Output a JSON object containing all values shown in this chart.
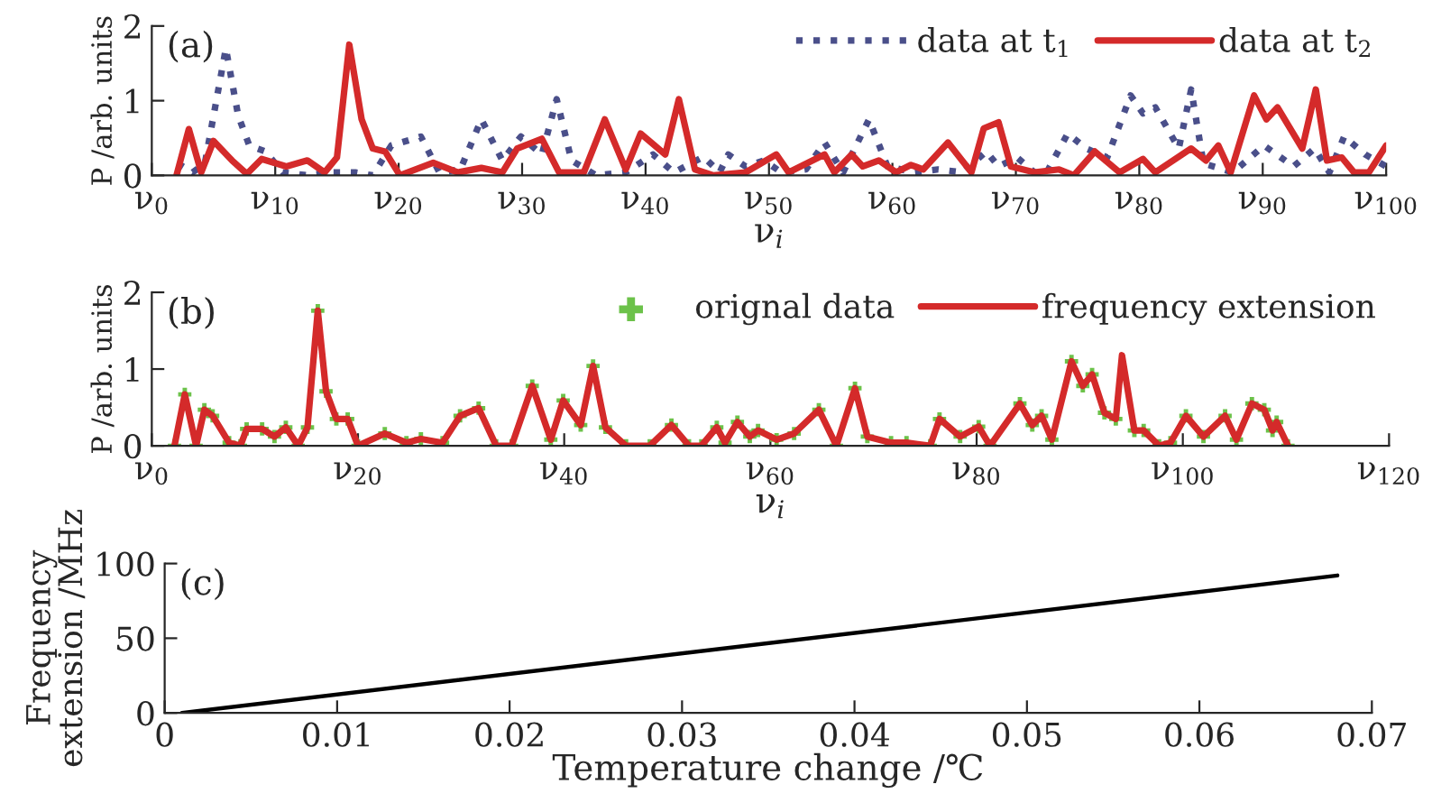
{
  "chart_data": [
    {
      "type": "line",
      "ylabel": "P /arb. units",
      "xlabel": "ν$_{i}$",
      "annotations": [
        "(a)"
      ],
      "legend": "top right",
      "grid": false,
      "xlim": [
        0,
        100
      ],
      "xticks": [
        {
          "value": 0,
          "label": "ν$_{0}$"
        },
        {
          "value": 10,
          "label": "ν$_{10}$"
        },
        {
          "value": 20,
          "label": "ν$_{20}$"
        },
        {
          "value": 30,
          "label": "ν$_{30}$"
        },
        {
          "value": 40,
          "label": "ν$_{40}$"
        },
        {
          "value": 50,
          "label": "ν$_{50}$"
        },
        {
          "value": 60,
          "label": "ν$_{60}$"
        },
        {
          "value": 70,
          "label": "ν$_{70}$"
        },
        {
          "value": 80,
          "label": "ν$_{80}$"
        },
        {
          "value": 90,
          "label": "ν$_{90}$"
        },
        {
          "value": 100,
          "label": "ν$_{100}$"
        }
      ],
      "ylim": [
        0,
        2
      ],
      "yticks": [
        0,
        1,
        2
      ],
      "series": [
        {
          "name": "data at t$_{1}$",
          "color": "#4a4f8a",
          "line_style": "dotted",
          "x": [
            2.1,
            3.3,
            4.3,
            6,
            7,
            7.9,
            9.2,
            10.6,
            12.6,
            14.5,
            16.5,
            17.9,
            19.4,
            21.8,
            23.3,
            25,
            26.7,
            28.4,
            29.9,
            31.6,
            32.8,
            34,
            36,
            38.4,
            40.6,
            42.3,
            44.7,
            46,
            46.7,
            48.1,
            49.6,
            51,
            53,
            54.5,
            56,
            58.1,
            59.6,
            61.8,
            63.7,
            65.7,
            67.6,
            68.6,
            70.1,
            71.5,
            72.5,
            74.2,
            75.7,
            77.4,
            79.3,
            80.3,
            81.3,
            83.2,
            84.2,
            85.2,
            87.6,
            90.1,
            92.5,
            94.2,
            95.4,
            96.6,
            98.3,
            100
          ],
          "values": [
            0.16,
            0.04,
            0.16,
            1.7,
            0.8,
            0.4,
            0.32,
            0.04,
            0,
            0.04,
            0.04,
            0,
            0.4,
            0.52,
            0.04,
            0.08,
            0.75,
            0.2,
            0.52,
            0.28,
            1.02,
            0.2,
            0,
            0.04,
            0.28,
            0.04,
            0.25,
            0.04,
            0.28,
            0.12,
            0.2,
            0.04,
            0.08,
            0.44,
            0.04,
            0.75,
            0.12,
            0.04,
            0.08,
            0.04,
            0.32,
            0.12,
            0.24,
            0.04,
            0.04,
            0.56,
            0.36,
            0.24,
            1.07,
            0.83,
            0.91,
            0.36,
            1.15,
            0.16,
            0.04,
            0.4,
            0.12,
            0.36,
            0.04,
            0.52,
            0.28,
            0.12
          ]
        },
        {
          "name": "data at t$_{2}$",
          "color": "#d42a2a",
          "line_style": "solid",
          "x": [
            2,
            3,
            4,
            5,
            6.5,
            7.7,
            8.9,
            10.9,
            12.6,
            14,
            15,
            16,
            17,
            17.9,
            18.9,
            20.1,
            22.8,
            24.8,
            26.7,
            28.4,
            29.6,
            31.6,
            33,
            35,
            36.7,
            38.4,
            39.6,
            41.6,
            42.7,
            44,
            45.5,
            48.1,
            50.6,
            51.6,
            54.5,
            55.3,
            56.7,
            57.6,
            58.9,
            60.3,
            61.5,
            62.5,
            64.5,
            66.4,
            67.4,
            68.6,
            69.6,
            71.5,
            73.5,
            74.7,
            76.4,
            78.4,
            80.3,
            81.3,
            84.2,
            85.4,
            86.4,
            87.4,
            89.3,
            90.3,
            91.2,
            93.2,
            94.3,
            95.2,
            96.4,
            97.4,
            98.6,
            100
          ],
          "values": [
            0,
            0.62,
            0.04,
            0.46,
            0.2,
            0.02,
            0.22,
            0.12,
            0.2,
            0.04,
            0.24,
            1.75,
            0.75,
            0.36,
            0.32,
            0,
            0.17,
            0.04,
            0.1,
            0.04,
            0.36,
            0.49,
            0.04,
            0.04,
            0.75,
            0.08,
            0.56,
            0.28,
            1.02,
            0.08,
            0,
            0.04,
            0.28,
            0.04,
            0.28,
            0.04,
            0.28,
            0.12,
            0.2,
            0.04,
            0.14,
            0.08,
            0.44,
            0.04,
            0.63,
            0.71,
            0.12,
            0.04,
            0.08,
            0,
            0.32,
            0.04,
            0.22,
            0.04,
            0.36,
            0.2,
            0.4,
            0.04,
            1.07,
            0.75,
            0.91,
            0.36,
            1.15,
            0.2,
            0.24,
            0.04,
            0.04,
            0.4
          ]
        }
      ]
    },
    {
      "type": "line",
      "ylabel": "P /arb. units",
      "xlabel": "ν$_{i}$",
      "annotations": [
        "(b)"
      ],
      "legend": "top right",
      "grid": false,
      "xlim": [
        0,
        120
      ],
      "xticks": [
        {
          "value": 0,
          "label": "ν$_{0}$"
        },
        {
          "value": 20,
          "label": "ν$_{20}$"
        },
        {
          "value": 40,
          "label": "ν$_{40}$"
        },
        {
          "value": 60,
          "label": "ν$_{60}$"
        },
        {
          "value": 80,
          "label": "ν$_{80}$"
        },
        {
          "value": 100,
          "label": "ν$_{100}$"
        },
        {
          "value": 120,
          "label": "ν$_{120}$"
        }
      ],
      "ylim": [
        0,
        2
      ],
      "yticks": [
        0,
        1,
        2
      ],
      "series": [
        {
          "name": "orignal data",
          "type": "scatter",
          "marker": "cross",
          "color": "#6cc24a",
          "x": [
            2.2,
            3.2,
            4.3,
            5.1,
            5.9,
            7.5,
            8.6,
            9.2,
            10.7,
            11.9,
            13,
            14.2,
            15.1,
            16.1,
            16.9,
            17.9,
            19,
            20,
            22.6,
            24.7,
            26.1,
            28.2,
            29.9,
            31.7,
            33.4,
            34.9,
            36.9,
            38.7,
            39.9,
            41.6,
            42.8,
            44,
            46,
            48.3,
            50.4,
            52.1,
            53.3,
            54.8,
            55.6,
            56.8,
            58,
            58.8,
            60.6,
            62.3,
            64.7,
            66.4,
            68.2,
            69.4,
            71.7,
            73.2,
            75.5,
            76.4,
            78.4,
            80.2,
            81.3,
            84.2,
            85.4,
            86.3,
            87.3,
            89.2,
            90.3,
            91.2,
            92.4,
            93.5,
            95.3,
            96.2,
            97.7,
            98.8,
            100.3,
            102,
            104.1,
            105.2,
            106.7,
            107.9,
            108.7,
            109.1,
            110.2
          ],
          "values": [
            0,
            0.67,
            0,
            0.47,
            0.39,
            0.04,
            0,
            0.22,
            0.22,
            0.12,
            0.24,
            0,
            0.24,
            1.76,
            0.71,
            0.35,
            0.35,
            0,
            0.16,
            0.04,
            0.09,
            0.04,
            0.39,
            0.49,
            0,
            0,
            0.78,
            0.08,
            0.59,
            0.27,
            1.04,
            0.24,
            0,
            0,
            0.27,
            0,
            0,
            0.24,
            0.04,
            0.31,
            0.12,
            0.2,
            0.08,
            0.16,
            0.47,
            0,
            0.75,
            0.12,
            0.04,
            0.04,
            0,
            0.35,
            0.12,
            0.25,
            0,
            0.55,
            0.27,
            0.39,
            0.08,
            1.1,
            0.78,
            0.93,
            0.43,
            0.35,
            0.2,
            0.2,
            0,
            0.04,
            0.39,
            0.12,
            0.39,
            0.08,
            0.55,
            0.47,
            0.2,
            0.31,
            0
          ]
        },
        {
          "name": "frequency extension",
          "type": "line",
          "color": "#d42a2a",
          "line_style": "solid",
          "x": [
            2.2,
            3.2,
            4.3,
            5.1,
            5.9,
            7.5,
            8.6,
            9.2,
            10.7,
            11.9,
            13,
            14.2,
            15.1,
            16.1,
            16.9,
            17.9,
            19,
            20,
            22.6,
            24.7,
            26.1,
            28.2,
            29.9,
            31.7,
            33.4,
            34.9,
            36.9,
            38.7,
            39.9,
            41.6,
            42.8,
            44,
            46,
            48.3,
            50.4,
            52.1,
            53.3,
            54.8,
            55.6,
            56.8,
            58,
            58.8,
            60.6,
            62.3,
            64.7,
            66.4,
            68.2,
            69.4,
            71.7,
            73.2,
            75.5,
            76.4,
            78.4,
            80.2,
            81.3,
            84.2,
            85.4,
            86.3,
            87.3,
            89.2,
            90.3,
            91.2,
            92.4,
            93.5,
            94.1,
            95.3,
            96.2,
            97.7,
            98.8,
            100.3,
            102,
            104.1,
            105.2,
            106.7,
            107.9,
            108.7,
            109.1,
            110.2
          ],
          "values": [
            0,
            0.67,
            0,
            0.47,
            0.39,
            0.04,
            0,
            0.22,
            0.22,
            0.12,
            0.24,
            0,
            0.24,
            1.76,
            0.71,
            0.35,
            0.35,
            0,
            0.16,
            0.04,
            0.09,
            0.04,
            0.39,
            0.49,
            0,
            0,
            0.78,
            0.08,
            0.59,
            0.27,
            1.04,
            0.24,
            0,
            0,
            0.27,
            0,
            0,
            0.24,
            0.04,
            0.31,
            0.12,
            0.2,
            0.08,
            0.16,
            0.47,
            0,
            0.75,
            0.12,
            0.04,
            0.04,
            0,
            0.35,
            0.12,
            0.25,
            0,
            0.55,
            0.27,
            0.39,
            0.08,
            1.1,
            0.78,
            0.93,
            0.43,
            0.35,
            1.18,
            0.2,
            0.2,
            0,
            0.04,
            0.39,
            0.12,
            0.39,
            0.08,
            0.55,
            0.47,
            0.2,
            0.31,
            0
          ]
        }
      ]
    },
    {
      "type": "line",
      "ylabel": "Frequency\nextension /MHz",
      "xlabel": "Temperature change /℃",
      "annotations": [
        "(c)"
      ],
      "grid": false,
      "xlim": [
        0,
        0.07
      ],
      "xticks": [
        0,
        0.01,
        0.02,
        0.03,
        0.04,
        0.05,
        0.06,
        0.07
      ],
      "ylim": [
        0,
        100
      ],
      "yticks": [
        0,
        50,
        100
      ],
      "series": [
        {
          "color": "#000000",
          "line_style": "solid",
          "x": [
            0.001,
            0.068
          ],
          "values": [
            0,
            92
          ]
        }
      ]
    }
  ]
}
